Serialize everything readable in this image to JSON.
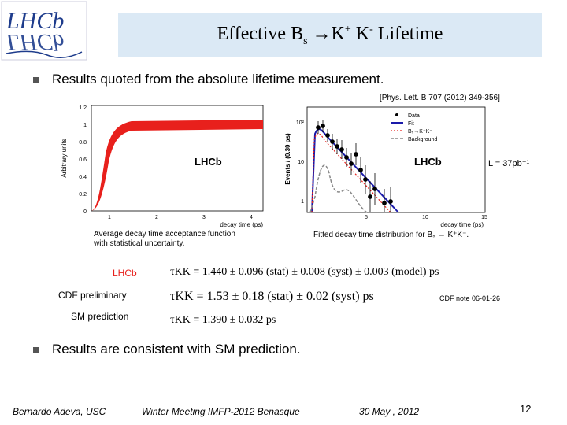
{
  "logo": {
    "text": "LHCb"
  },
  "title": {
    "pre": "Effective B",
    "sub": "s",
    "mid": " →K",
    "sup1": "+",
    "k2": " K",
    "sup2": "-",
    "post": "  Lifetime"
  },
  "bullets": [
    "Results quoted from the absolute lifetime measurement.",
    "Results are consistent with SM prediction."
  ],
  "reference": "[Phys. Lett. B 707 (2012) 349-356]",
  "acceptance_plot": {
    "ylabel": "Arbitrary units",
    "xlabel": "decay time (ps)",
    "yticks": [
      "0",
      "0.2",
      "0.4",
      "0.6",
      "0.8",
      "1",
      "1.2"
    ],
    "xticks": [
      "1",
      "2",
      "3",
      "4"
    ],
    "watermark": "LHCb",
    "caption_line1": "Average decay time acceptance function",
    "caption_line2": "with statistical uncertainty."
  },
  "fit_plot": {
    "ylabel": "Events / (0.30 ps)",
    "xlabel": "decay time (ps)",
    "yticks": [
      "1",
      "10",
      "10²"
    ],
    "xticks": [
      "5",
      "10",
      "15"
    ],
    "watermark": "LHCb",
    "lumi": "L = 37pb⁻¹",
    "legend": [
      "Data",
      "Fit",
      "Bₛ→K⁺K⁻",
      "Background"
    ],
    "caption": "Fitted decay time distribution for Bₛ → K⁺K⁻."
  },
  "results": [
    {
      "label": "LHCb",
      "formula": "τKK = 1.440 ± 0.096 (stat) ± 0.008 (syst) ± 0.003 (model) ps",
      "note": ""
    },
    {
      "label": "CDF preliminary",
      "formula": "τKK = 1.53 ± 0.18 (stat) ± 0.02 (syst) ps",
      "note": "CDF note 06-01-26"
    },
    {
      "label": "SM prediction",
      "formula": "τKK = 1.390 ± 0.032 ps",
      "note": ""
    }
  ],
  "footer": {
    "author": "Bernardo Adeva, USC",
    "event": "Winter Meeting IMFP-2012  Benasque",
    "date": "30 May , 2012",
    "page": "12"
  },
  "colors": {
    "title_box": "#dbe9f5",
    "lhcb_red": "#e8201c",
    "fit_blue": "#1a1aaa",
    "logo_blue": "#1e3c8c"
  }
}
